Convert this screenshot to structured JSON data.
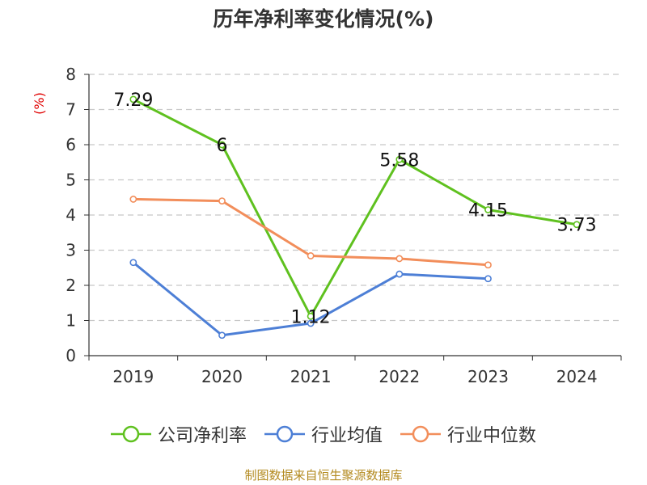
{
  "chart_data": {
    "type": "line",
    "title": "历年净利率变化情况(%)",
    "ylabel": "(%)",
    "xlabel": "",
    "categories": [
      "2019",
      "2020",
      "2021",
      "2022",
      "2023",
      "2024"
    ],
    "ylim": [
      0,
      8
    ],
    "yticks": [
      0,
      1,
      2,
      3,
      4,
      5,
      6,
      7,
      8
    ],
    "grid": true,
    "legend_position": "bottom",
    "series": [
      {
        "name": "公司净利率",
        "color": "#5fc11f",
        "values": [
          7.29,
          6,
          1.12,
          5.58,
          4.15,
          3.73
        ],
        "labels": [
          "7.29",
          "6",
          "1.12",
          "5.58",
          "4.15",
          "3.73"
        ]
      },
      {
        "name": "行业均值",
        "color": "#4d7fd6",
        "values": [
          2.65,
          0.58,
          0.92,
          2.32,
          2.19,
          null
        ]
      },
      {
        "name": "行业中位数",
        "color": "#f28e5b",
        "values": [
          4.45,
          4.4,
          2.84,
          2.76,
          2.58,
          null
        ]
      }
    ]
  },
  "footer": {
    "source": "制图数据来自恒生聚源数据库"
  }
}
